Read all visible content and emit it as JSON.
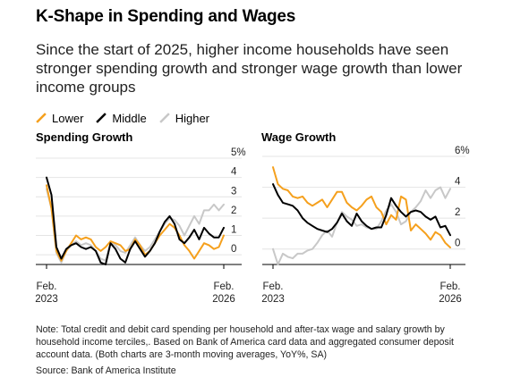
{
  "header": {
    "title": "K-Shape in Spending and Wages",
    "subtitle": "Since the start of 2025, higher income households have seen stronger spending growth and stronger wage growth than lower income groups"
  },
  "legend": [
    {
      "name": "Lower",
      "color": "#f5a01d"
    },
    {
      "name": "Middle",
      "color": "#000000"
    },
    {
      "name": "Higher",
      "color": "#c8c8c8"
    }
  ],
  "footer": {
    "note": "Note: Total credit and debit card spending per household and after-tax wage and salary growth by household income terciles,. Based on Bank of America card data and aggregated consumer deposit account data. (Both charts are 3-month moving averages, YoY%, SA)",
    "source": "Source: Bank of America Institute"
  },
  "chart_data": [
    {
      "type": "line",
      "title": "Spending Growth",
      "x_labels": [
        [
          "Feb.",
          "2023"
        ],
        [
          "Feb.",
          "2026"
        ]
      ],
      "y_ticks": [
        "0",
        "1",
        "2",
        "3",
        "4",
        "5%"
      ],
      "ylim": [
        -0.5,
        5
      ],
      "n_points": 37,
      "series": [
        {
          "name": "Lower",
          "color": "#f5a01d",
          "values": [
            3.6,
            2.4,
            0.2,
            -0.3,
            0.2,
            0.6,
            1.0,
            0.8,
            0.9,
            0.8,
            0.4,
            0.2,
            0.4,
            0.7,
            0.6,
            0.5,
            0.2,
            0.3,
            0.8,
            0.5,
            0.0,
            0.2,
            0.6,
            1.0,
            1.3,
            1.6,
            1.4,
            1.0,
            0.5,
            0.2,
            -0.2,
            0.2,
            0.6,
            0.5,
            0.3,
            0.4,
            1.0
          ]
        },
        {
          "name": "Middle",
          "color": "#000000",
          "values": [
            4.0,
            3.1,
            0.4,
            -0.2,
            0.3,
            0.5,
            0.6,
            0.4,
            0.3,
            0.4,
            0.2,
            -0.4,
            -0.5,
            0.6,
            0.3,
            -0.2,
            -0.4,
            0.3,
            0.7,
            0.3,
            -0.1,
            0.2,
            0.6,
            1.2,
            1.7,
            2.0,
            1.6,
            0.8,
            0.6,
            0.9,
            1.3,
            0.8,
            1.4,
            1.1,
            0.9,
            0.9,
            1.4
          ]
        },
        {
          "name": "Higher",
          "color": "#c8c8c8",
          "values": [
            3.4,
            2.4,
            0.1,
            -0.4,
            0.2,
            0.5,
            0.7,
            0.5,
            0.6,
            0.5,
            0.2,
            -0.2,
            -0.3,
            0.6,
            0.5,
            0.2,
            0.1,
            0.5,
            0.9,
            0.5,
            0.2,
            0.4,
            0.8,
            1.2,
            1.6,
            1.9,
            1.8,
            1.5,
            1.0,
            1.5,
            2.0,
            1.6,
            2.3,
            2.3,
            2.6,
            2.3,
            2.6
          ]
        }
      ]
    },
    {
      "type": "line",
      "title": "Wage Growth",
      "x_labels": [
        [
          "Feb.",
          "2023"
        ],
        [
          "Feb.",
          "2026"
        ]
      ],
      "y_ticks": [
        "0",
        "2",
        "4",
        "6%"
      ],
      "ylim": [
        -1,
        6
      ],
      "n_points": 37,
      "series": [
        {
          "name": "Lower",
          "color": "#f5a01d",
          "values": [
            5.3,
            4.2,
            3.9,
            3.8,
            3.4,
            3.3,
            3.4,
            3.0,
            2.8,
            3.0,
            3.2,
            2.7,
            3.2,
            3.7,
            3.7,
            3.0,
            2.7,
            2.5,
            2.8,
            3.2,
            3.4,
            2.7,
            2.4,
            1.6,
            2.2,
            1.9,
            3.4,
            3.2,
            1.2,
            1.6,
            1.3,
            1.0,
            0.6,
            1.1,
            0.9,
            0.4,
            0.1
          ]
        },
        {
          "name": "Middle",
          "color": "#000000",
          "values": [
            4.2,
            3.5,
            3.0,
            2.9,
            2.8,
            2.5,
            2.0,
            1.7,
            1.5,
            1.3,
            1.2,
            1.1,
            1.3,
            1.7,
            2.3,
            1.8,
            1.5,
            2.3,
            1.8,
            1.5,
            1.3,
            1.4,
            1.4,
            2.2,
            3.3,
            2.8,
            2.4,
            2.1,
            2.4,
            2.5,
            2.4,
            2.1,
            1.9,
            2.1,
            1.4,
            1.5,
            0.9
          ]
        },
        {
          "name": "Higher",
          "color": "#c8c8c8",
          "values": [
            0.0,
            -1.0,
            -0.3,
            -0.5,
            -0.6,
            -0.3,
            -0.3,
            -0.1,
            0.0,
            0.4,
            0.9,
            1.2,
            0.8,
            1.7,
            2.4,
            2.1,
            1.9,
            1.5,
            1.6,
            1.4,
            1.3,
            1.3,
            1.8,
            2.5,
            2.9,
            2.4,
            1.6,
            1.8,
            2.4,
            2.7,
            3.1,
            3.8,
            3.3,
            3.8,
            4.0,
            3.3,
            3.9
          ]
        }
      ]
    }
  ]
}
